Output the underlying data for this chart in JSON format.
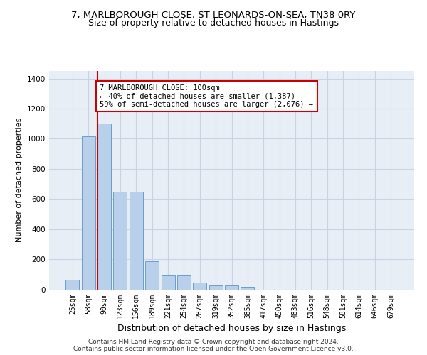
{
  "title_line1": "7, MARLBOROUGH CLOSE, ST LEONARDS-ON-SEA, TN38 0RY",
  "title_line2": "Size of property relative to detached houses in Hastings",
  "xlabel": "Distribution of detached houses by size in Hastings",
  "ylabel": "Number of detached properties",
  "categories": [
    "25sqm",
    "58sqm",
    "90sqm",
    "123sqm",
    "156sqm",
    "189sqm",
    "221sqm",
    "254sqm",
    "287sqm",
    "319sqm",
    "352sqm",
    "385sqm",
    "417sqm",
    "450sqm",
    "483sqm",
    "516sqm",
    "548sqm",
    "581sqm",
    "614sqm",
    "646sqm",
    "679sqm"
  ],
  "values": [
    62,
    1015,
    1100,
    650,
    650,
    188,
    90,
    90,
    46,
    28,
    25,
    18,
    0,
    0,
    0,
    0,
    0,
    0,
    0,
    0,
    0
  ],
  "bar_color": "#b8d0ea",
  "bar_edgecolor": "#6a9fcb",
  "vline_color": "#cc0000",
  "annotation_text": "7 MARLBOROUGH CLOSE: 100sqm\n← 40% of detached houses are smaller (1,387)\n59% of semi-detached houses are larger (2,076) →",
  "annotation_box_edgecolor": "#cc0000",
  "annotation_box_facecolor": "#ffffff",
  "ylim": [
    0,
    1450
  ],
  "yticks": [
    0,
    200,
    400,
    600,
    800,
    1000,
    1200,
    1400
  ],
  "grid_color": "#c8d4e4",
  "background_color": "#e8eef6",
  "footer_line1": "Contains HM Land Registry data © Crown copyright and database right 2024.",
  "footer_line2": "Contains public sector information licensed under the Open Government Licence v3.0.",
  "title_fontsize": 9.5,
  "subtitle_fontsize": 9,
  "xlabel_fontsize": 9,
  "ylabel_fontsize": 8,
  "annotation_fontsize": 7.5,
  "tick_fontsize": 7,
  "footer_fontsize": 6.5
}
